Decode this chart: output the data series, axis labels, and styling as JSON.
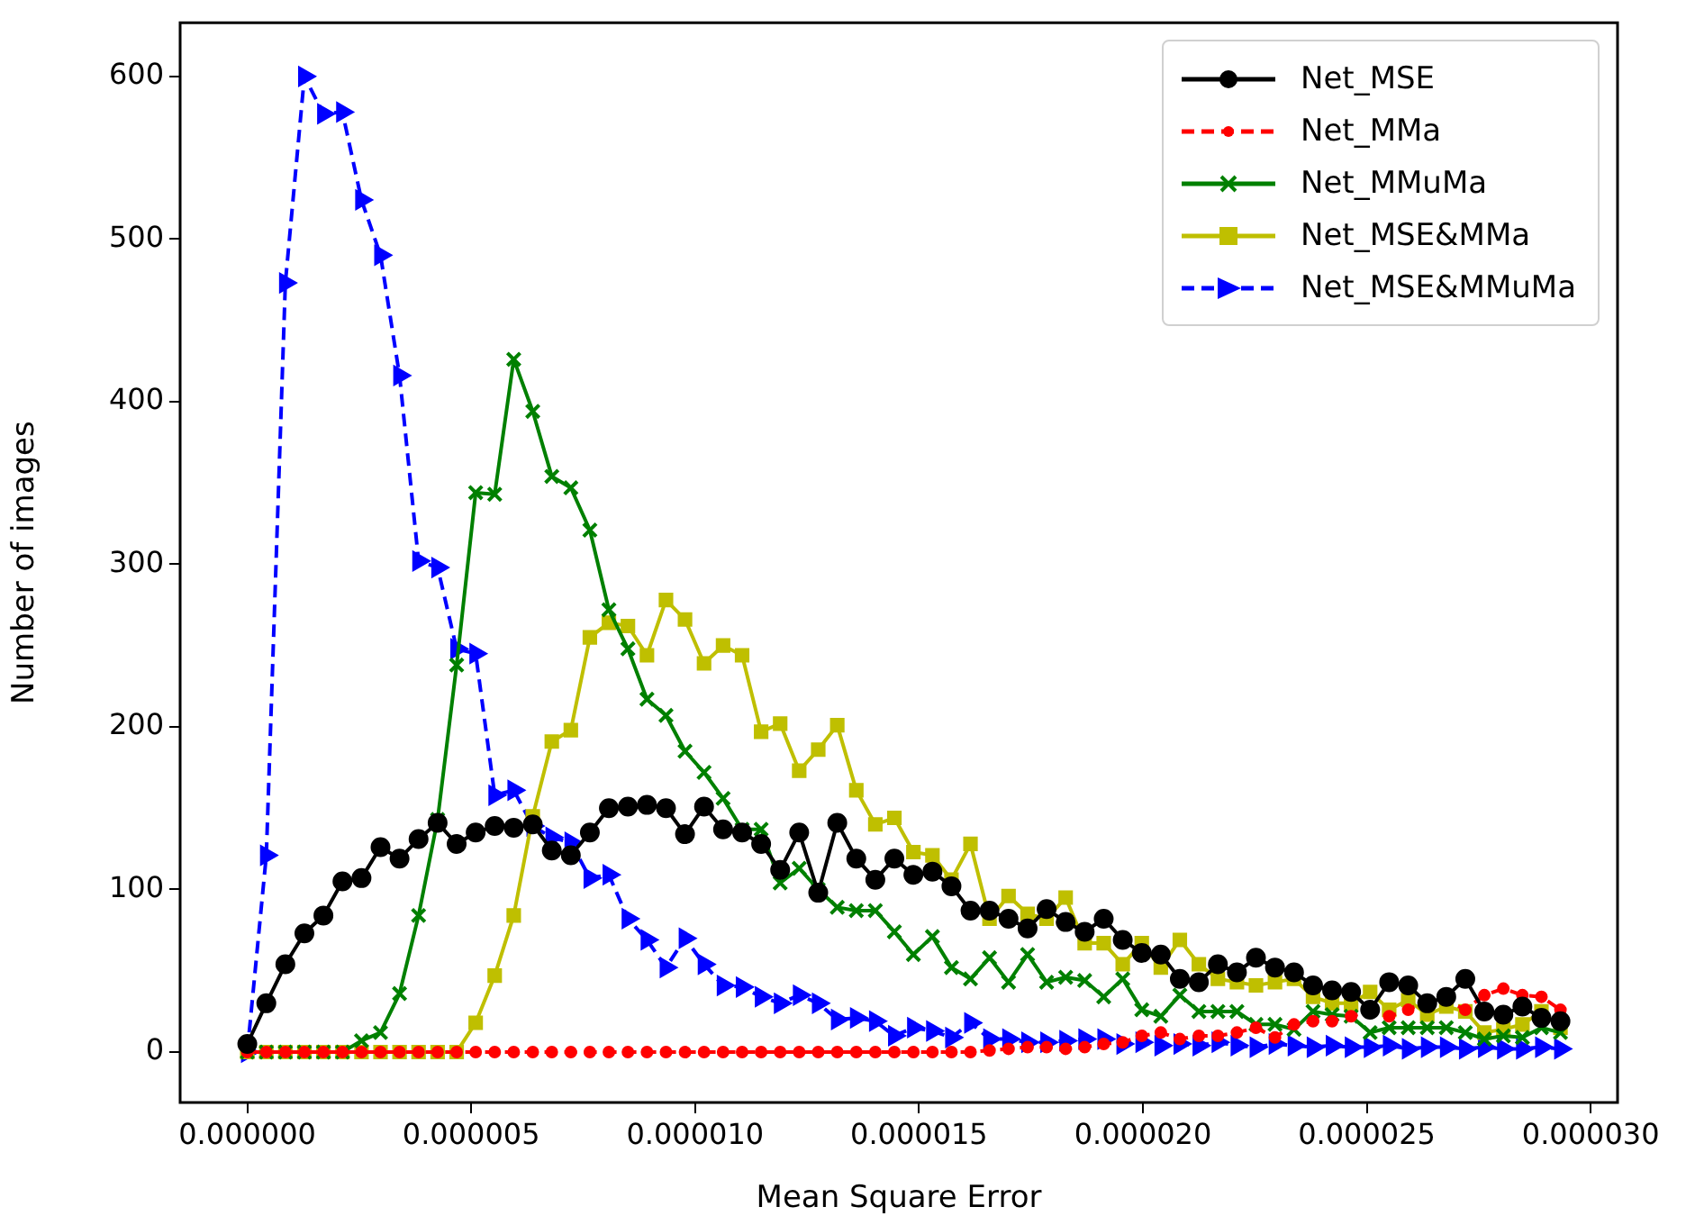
{
  "chart_data": {
    "type": "line",
    "xlabel": "Mean Square Error",
    "ylabel": "Number of images",
    "x": [
      0,
      4.25e-07,
      8.5e-07,
      1.275e-06,
      1.7e-06,
      2.125e-06,
      2.55e-06,
      2.975e-06,
      3.4e-06,
      3.825e-06,
      4.25e-06,
      4.675e-06,
      5.1e-06,
      5.525e-06,
      5.95e-06,
      6.375e-06,
      6.8e-06,
      7.225e-06,
      7.65e-06,
      8.075e-06,
      8.5e-06,
      8.925e-06,
      9.35e-06,
      9.775e-06,
      1.02e-05,
      1.0625e-05,
      1.105e-05,
      1.1475e-05,
      1.19e-05,
      1.2325e-05,
      1.275e-05,
      1.3175e-05,
      1.36e-05,
      1.4025e-05,
      1.445e-05,
      1.4875e-05,
      1.53e-05,
      1.5725e-05,
      1.615e-05,
      1.6575e-05,
      1.7e-05,
      1.7425e-05,
      1.785e-05,
      1.8275e-05,
      1.87e-05,
      1.9125e-05,
      1.955e-05,
      1.9975e-05,
      2.04e-05,
      2.0825e-05,
      2.125e-05,
      2.1675e-05,
      2.21e-05,
      2.2525e-05,
      2.295e-05,
      2.3375e-05,
      2.38e-05,
      2.4225e-05,
      2.465e-05,
      2.5075e-05,
      2.55e-05,
      2.5925e-05,
      2.635e-05,
      2.6775e-05,
      2.72e-05,
      2.7625e-05,
      2.805e-05,
      2.8475e-05,
      2.89e-05,
      2.9325e-05
    ],
    "series": [
      {
        "name": "Net_MSE",
        "color": "#000000",
        "marker": "circle",
        "line_style": "solid",
        "values": [
          5,
          30,
          54,
          73,
          84,
          105,
          107,
          126,
          119,
          131,
          141,
          128,
          135,
          139,
          138,
          140,
          124,
          121,
          135,
          150,
          151,
          152,
          150,
          134,
          151,
          137,
          135,
          128,
          112,
          135,
          98,
          141,
          119,
          106,
          119,
          109,
          111,
          102,
          87,
          87,
          82,
          76,
          88,
          80,
          74,
          82,
          69,
          61,
          60,
          45,
          43,
          54,
          49,
          58,
          52,
          49,
          41,
          38,
          37,
          26,
          43,
          41,
          30,
          34,
          45,
          25,
          23,
          28,
          21,
          19
        ]
      },
      {
        "name": "Net_MMa",
        "color": "#ff0000",
        "marker": "circle",
        "line_style": "dashed",
        "values": [
          0,
          0,
          0,
          0,
          0,
          0,
          0,
          0,
          0,
          0,
          0,
          0,
          0,
          0,
          0,
          0,
          0,
          0,
          0,
          0,
          0,
          0,
          0,
          0,
          0,
          0,
          0,
          0,
          0,
          0,
          0,
          0,
          0,
          0,
          0,
          0,
          0,
          0,
          0,
          1,
          2,
          3,
          3,
          2,
          3,
          5,
          6,
          10,
          12,
          8,
          10,
          10,
          12,
          15,
          9,
          17,
          19,
          19,
          22,
          25,
          22,
          26,
          32,
          32,
          26,
          35,
          39,
          35,
          34,
          26
        ]
      },
      {
        "name": "Net_MMuMa",
        "color": "#008000",
        "marker": "cross",
        "line_style": "solid",
        "values": [
          0,
          0,
          0,
          0,
          0,
          0,
          7,
          12,
          36,
          84,
          143,
          238,
          344,
          343,
          426,
          394,
          354,
          347,
          321,
          272,
          248,
          217,
          207,
          185,
          172,
          156,
          137,
          137,
          104,
          113,
          100,
          89,
          87,
          87,
          74,
          60,
          71,
          52,
          45,
          58,
          43,
          60,
          43,
          46,
          44,
          34,
          45,
          26,
          22,
          35,
          25,
          25,
          25,
          17,
          17,
          14,
          25,
          23,
          22,
          12,
          15,
          15,
          15,
          15,
          12,
          8,
          10,
          9,
          15,
          12
        ]
      },
      {
        "name": "Net_MSE&MMa",
        "color": "#bfbf00",
        "marker": "square",
        "line_style": "solid",
        "values": [
          0,
          0,
          0,
          0,
          0,
          0,
          0,
          0,
          0,
          0,
          0,
          0,
          18,
          47,
          84,
          145,
          191,
          198,
          255,
          264,
          262,
          244,
          278,
          266,
          239,
          250,
          244,
          197,
          202,
          173,
          186,
          201,
          161,
          140,
          144,
          123,
          121,
          106,
          128,
          82,
          96,
          85,
          82,
          95,
          67,
          67,
          54,
          67,
          52,
          69,
          54,
          45,
          43,
          41,
          43,
          45,
          34,
          30,
          30,
          37,
          26,
          32,
          23,
          28,
          25,
          12,
          14,
          17,
          25,
          15
        ]
      },
      {
        "name": "Net_MSE&MMuMa",
        "color": "#0000ff",
        "marker": "triangle",
        "line_style": "dashed",
        "values": [
          0,
          121,
          473,
          600,
          577,
          578,
          524,
          490,
          416,
          302,
          298,
          248,
          245,
          158,
          161,
          139,
          132,
          129,
          107,
          109,
          82,
          69,
          52,
          70,
          54,
          41,
          40,
          34,
          30,
          35,
          30,
          20,
          21,
          19,
          10,
          15,
          13,
          9,
          18,
          8,
          8,
          6,
          6,
          7,
          8,
          8,
          5,
          6,
          4,
          5,
          4,
          6,
          4,
          3,
          5,
          4,
          3,
          4,
          3,
          3,
          4,
          2,
          3,
          3,
          2,
          3,
          2,
          2,
          3,
          2
        ]
      }
    ],
    "xlim": [
      -1.5e-06,
      3.06e-05
    ],
    "xticks": [
      {
        "value": 0,
        "label": "0.000000"
      },
      {
        "value": 5e-06,
        "label": "0.000005"
      },
      {
        "value": 1e-05,
        "label": "0.000010"
      },
      {
        "value": 1.5e-05,
        "label": "0.000015"
      },
      {
        "value": 2e-05,
        "label": "0.000020"
      },
      {
        "value": 2.5e-05,
        "label": "0.000025"
      },
      {
        "value": 3e-05,
        "label": "0.000030"
      }
    ],
    "ylim": [
      -31,
      633
    ],
    "yticks": [
      0,
      100,
      200,
      300,
      400,
      500,
      600
    ],
    "grid": false,
    "legend": "top right"
  }
}
